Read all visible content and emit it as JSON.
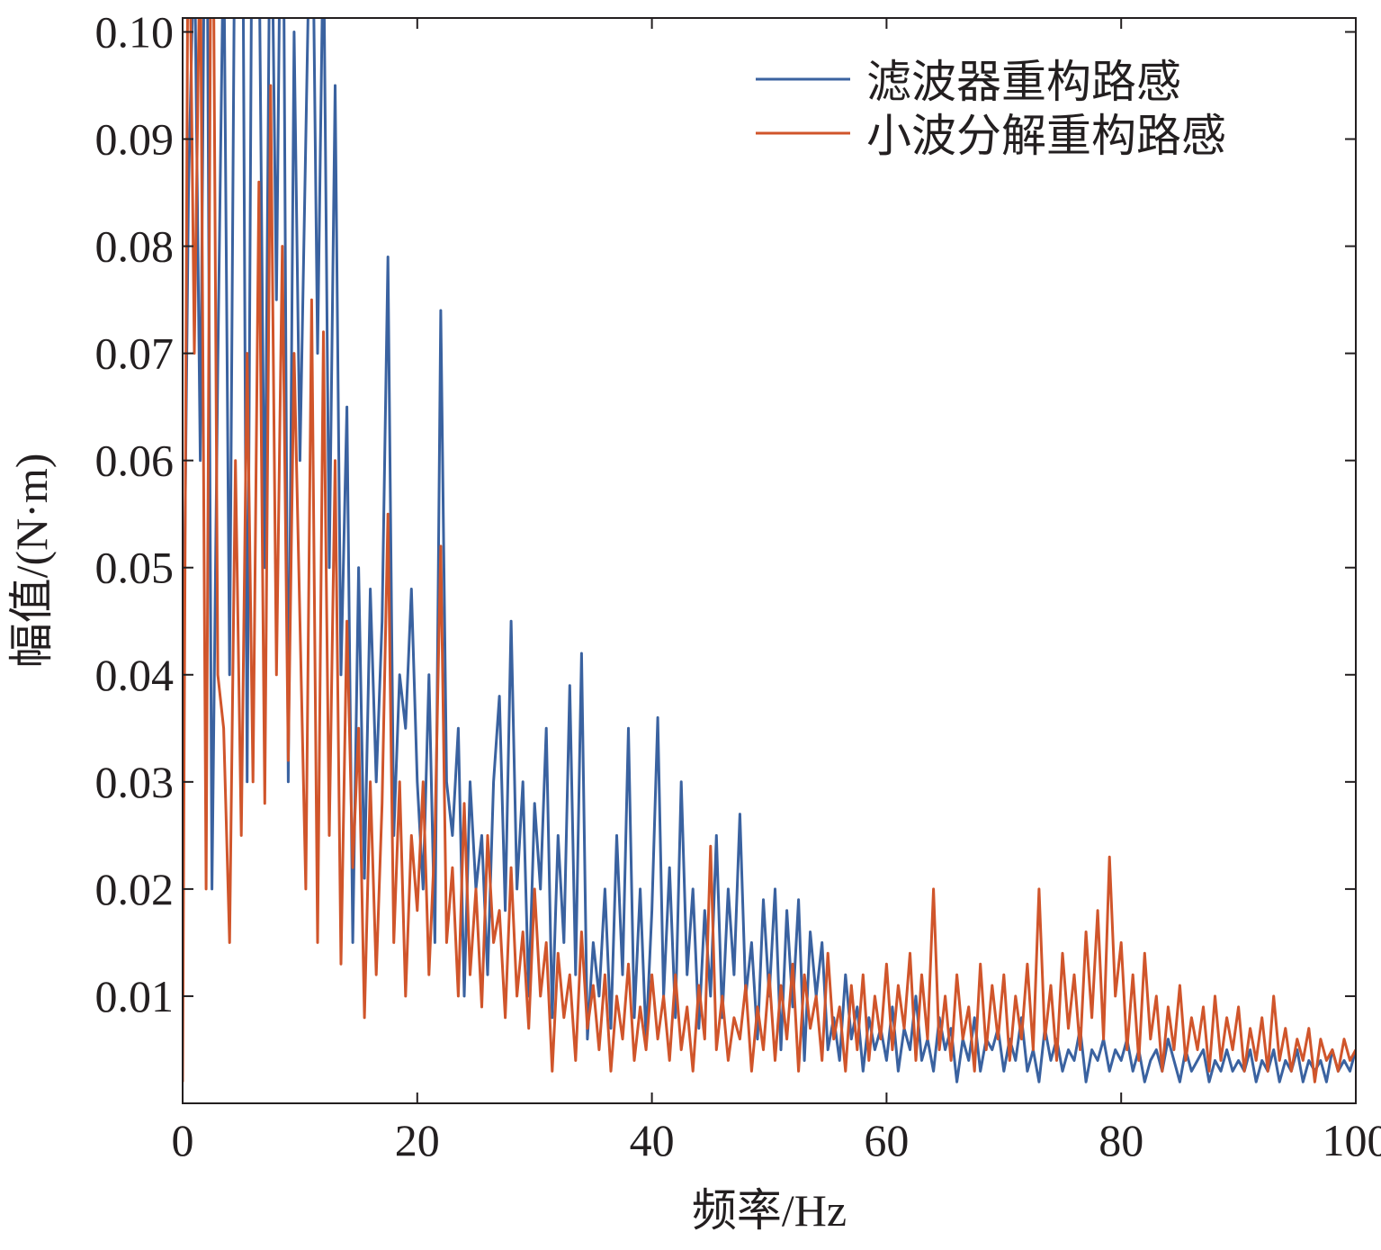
{
  "chart_data": {
    "type": "line",
    "title": "",
    "xlabel": "频率/Hz",
    "ylabel": "幅值/(N·m)",
    "xlim": [
      0,
      100
    ],
    "ylim": [
      0,
      0.1013
    ],
    "xticks": [
      "0",
      "20",
      "40",
      "60",
      "80",
      "100"
    ],
    "xtick_values": [
      0,
      20,
      40,
      60,
      80,
      100
    ],
    "yticks": [
      "0.01",
      "0.02",
      "0.03",
      "0.04",
      "0.05",
      "0.06",
      "0.07",
      "0.08",
      "0.09",
      "0.10"
    ],
    "ytick_values": [
      0.01,
      0.02,
      0.03,
      0.04,
      0.05,
      0.06,
      0.07,
      0.08,
      0.09,
      0.1
    ],
    "grid": false,
    "legend_position": "top-right",
    "x_start": 0,
    "x_step": 0.5,
    "series": [
      {
        "name": "滤波器重构路感",
        "color": "#3a62a0",
        "values": [
          0.033,
          0.085,
          0.11,
          0.06,
          0.13,
          0.02,
          0.069,
          0.11,
          0.04,
          0.12,
          0.14,
          0.03,
          0.13,
          0.11,
          0.05,
          0.12,
          0.075,
          0.13,
          0.03,
          0.1,
          0.06,
          0.09,
          0.12,
          0.07,
          0.11,
          0.05,
          0.095,
          0.04,
          0.065,
          0.015,
          0.05,
          0.021,
          0.048,
          0.03,
          0.045,
          0.079,
          0.025,
          0.04,
          0.035,
          0.048,
          0.03,
          0.02,
          0.04,
          0.015,
          0.074,
          0.03,
          0.025,
          0.035,
          0.01,
          0.03,
          0.02,
          0.025,
          0.012,
          0.03,
          0.038,
          0.018,
          0.045,
          0.02,
          0.03,
          0.01,
          0.028,
          0.02,
          0.035,
          0.008,
          0.025,
          0.015,
          0.039,
          0.012,
          0.042,
          0.006,
          0.015,
          0.01,
          0.02,
          0.007,
          0.025,
          0.012,
          0.035,
          0.008,
          0.02,
          0.006,
          0.018,
          0.036,
          0.01,
          0.022,
          0.008,
          0.03,
          0.012,
          0.02,
          0.007,
          0.018,
          0.01,
          0.025,
          0.008,
          0.02,
          0.012,
          0.027,
          0.01,
          0.015,
          0.006,
          0.019,
          0.01,
          0.02,
          0.005,
          0.018,
          0.009,
          0.019,
          0.004,
          0.016,
          0.01,
          0.015,
          0.005,
          0.008,
          0.004,
          0.012,
          0.006,
          0.009,
          0.003,
          0.008,
          0.005,
          0.007,
          0.004,
          0.009,
          0.003,
          0.007,
          0.005,
          0.01,
          0.004,
          0.006,
          0.003,
          0.008,
          0.005,
          0.007,
          0.002,
          0.006,
          0.004,
          0.008,
          0.003,
          0.006,
          0.005,
          0.007,
          0.003,
          0.006,
          0.004,
          0.008,
          0.003,
          0.005,
          0.002,
          0.007,
          0.004,
          0.006,
          0.003,
          0.005,
          0.004,
          0.007,
          0.002,
          0.005,
          0.004,
          0.006,
          0.003,
          0.005,
          0.004,
          0.006,
          0.003,
          0.005,
          0.002,
          0.004,
          0.005,
          0.003,
          0.006,
          0.004,
          0.002,
          0.005,
          0.003,
          0.004,
          0.005,
          0.002,
          0.004,
          0.003,
          0.005,
          0.003,
          0.004,
          0.003,
          0.005,
          0.002,
          0.004,
          0.003,
          0.005,
          0.002,
          0.004,
          0.003,
          0.005,
          0.002,
          0.004,
          0.003,
          0.004,
          0.002,
          0.005,
          0.003,
          0.004,
          0.003,
          0.005
        ]
      },
      {
        "name": "小波分解重构路感",
        "color": "#d0552b",
        "values": [
          0.002,
          0.12,
          0.07,
          0.11,
          0.02,
          0.13,
          0.04,
          0.035,
          0.015,
          0.06,
          0.025,
          0.07,
          0.03,
          0.086,
          0.028,
          0.095,
          0.04,
          0.08,
          0.032,
          0.07,
          0.045,
          0.02,
          0.075,
          0.015,
          0.072,
          0.025,
          0.06,
          0.013,
          0.045,
          0.022,
          0.035,
          0.008,
          0.03,
          0.012,
          0.028,
          0.055,
          0.015,
          0.03,
          0.01,
          0.025,
          0.018,
          0.03,
          0.012,
          0.025,
          0.052,
          0.015,
          0.022,
          0.01,
          0.028,
          0.012,
          0.02,
          0.009,
          0.025,
          0.015,
          0.018,
          0.008,
          0.022,
          0.01,
          0.016,
          0.007,
          0.02,
          0.01,
          0.015,
          0.003,
          0.014,
          0.008,
          0.012,
          0.004,
          0.016,
          0.007,
          0.011,
          0.005,
          0.012,
          0.003,
          0.01,
          0.006,
          0.013,
          0.004,
          0.009,
          0.005,
          0.012,
          0.006,
          0.01,
          0.004,
          0.012,
          0.005,
          0.009,
          0.003,
          0.011,
          0.006,
          0.024,
          0.005,
          0.01,
          0.004,
          0.008,
          0.006,
          0.011,
          0.003,
          0.009,
          0.005,
          0.012,
          0.004,
          0.011,
          0.006,
          0.013,
          0.003,
          0.012,
          0.007,
          0.01,
          0.004,
          0.014,
          0.006,
          0.009,
          0.003,
          0.011,
          0.005,
          0.012,
          0.004,
          0.01,
          0.006,
          0.013,
          0.005,
          0.011,
          0.007,
          0.014,
          0.004,
          0.012,
          0.006,
          0.02,
          0.005,
          0.01,
          0.004,
          0.012,
          0.006,
          0.009,
          0.003,
          0.013,
          0.005,
          0.011,
          0.006,
          0.012,
          0.004,
          0.01,
          0.006,
          0.013,
          0.005,
          0.02,
          0.006,
          0.011,
          0.004,
          0.014,
          0.007,
          0.012,
          0.005,
          0.016,
          0.008,
          0.018,
          0.006,
          0.023,
          0.01,
          0.015,
          0.005,
          0.012,
          0.004,
          0.014,
          0.006,
          0.01,
          0.003,
          0.009,
          0.005,
          0.011,
          0.004,
          0.008,
          0.005,
          0.009,
          0.003,
          0.01,
          0.004,
          0.008,
          0.005,
          0.009,
          0.003,
          0.007,
          0.004,
          0.008,
          0.003,
          0.01,
          0.004,
          0.007,
          0.003,
          0.006,
          0.004,
          0.007,
          0.002,
          0.006,
          0.004,
          0.005,
          0.003,
          0.006,
          0.004,
          0.005
        ]
      }
    ]
  }
}
